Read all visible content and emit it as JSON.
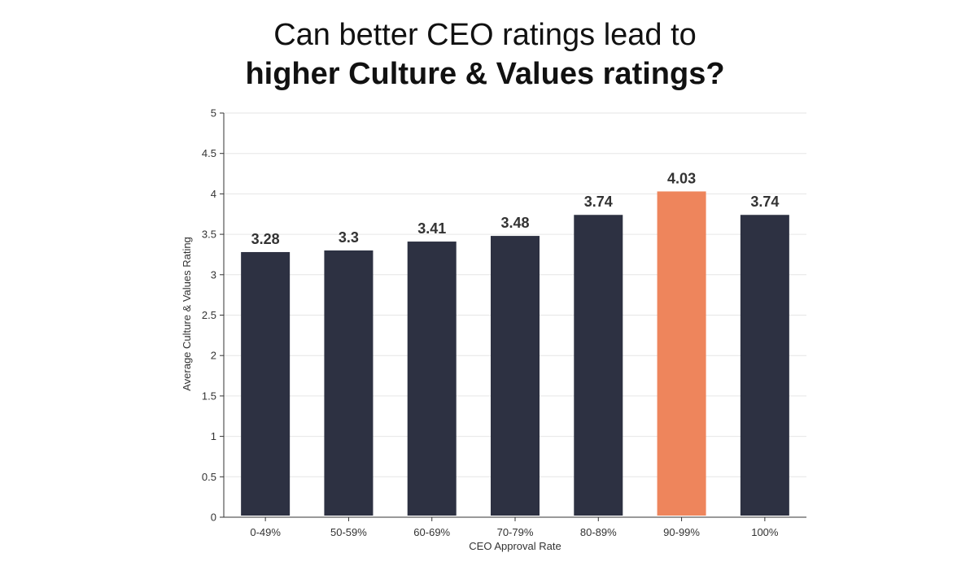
{
  "title": {
    "line1": "Can better CEO ratings lead to",
    "line2": "higher Culture & Values ratings?"
  },
  "chart_data": {
    "type": "bar",
    "categories": [
      "0-49%",
      "50-59%",
      "60-69%",
      "70-79%",
      "80-89%",
      "90-99%",
      "100%"
    ],
    "values": [
      3.28,
      3.3,
      3.41,
      3.48,
      3.74,
      4.03,
      3.74
    ],
    "value_labels": [
      "3.28",
      "3.3",
      "3.41",
      "3.48",
      "3.74",
      "4.03",
      "3.74"
    ],
    "xlabel": "CEO Approval Rate",
    "ylabel": "Average Culture & Values Rating",
    "ylim": [
      0,
      5
    ],
    "yticks": [
      "0",
      "0.5",
      "1",
      "1.5",
      "2",
      "2.5",
      "3",
      "3.5",
      "4",
      "4.5",
      "5"
    ],
    "grid": true,
    "colors": {
      "bar": "#2d3142",
      "highlight": "#ee855c",
      "highlight_category": "90-99%",
      "grid": "#e6e6e6",
      "axis": "#333333"
    }
  }
}
